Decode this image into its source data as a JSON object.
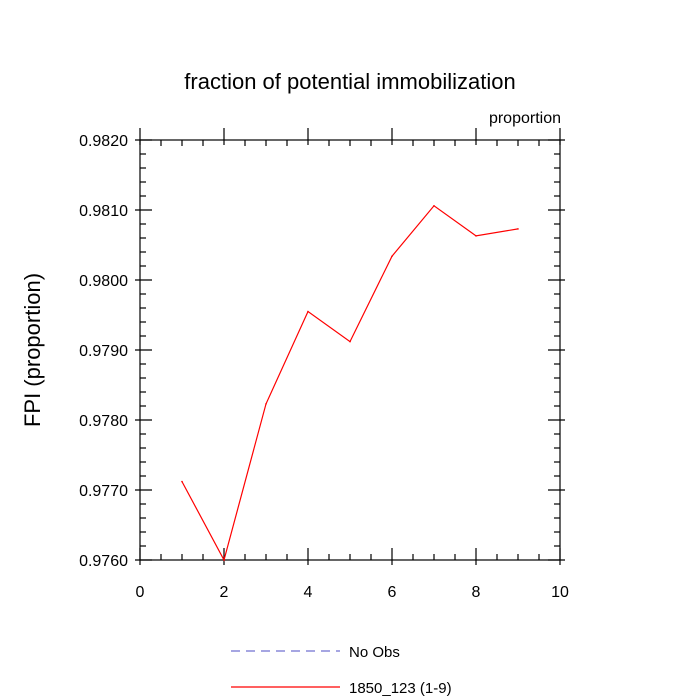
{
  "chart_data": {
    "type": "line",
    "title": "fraction of potential immobilization",
    "corner_label": "proportion",
    "xlabel": "",
    "ylabel": "FPI  (proportion)",
    "xlim": [
      0,
      10
    ],
    "ylim": [
      0.976,
      0.982
    ],
    "x_ticks": [
      0,
      2,
      4,
      6,
      8,
      10
    ],
    "x_tick_labels": [
      "0",
      "2",
      "4",
      "6",
      "8",
      "10"
    ],
    "y_ticks": [
      0.976,
      0.977,
      0.978,
      0.979,
      0.98,
      0.981,
      0.982
    ],
    "y_tick_labels": [
      "0.9760",
      "0.9770",
      "0.9780",
      "0.9790",
      "0.9800",
      "0.9810",
      "0.9820"
    ],
    "grid": false,
    "legend_position": "bottom",
    "series": [
      {
        "name": "1850_123 (1-9)",
        "color": "#ff0000",
        "style": "solid",
        "x": [
          1,
          2,
          3,
          4,
          5,
          6,
          7,
          8,
          9
        ],
        "y": [
          0.97712,
          0.976,
          0.97823,
          0.97955,
          0.97912,
          0.98034,
          0.98106,
          0.98063,
          0.98073
        ]
      }
    ],
    "legend": [
      {
        "label": "No Obs",
        "color": "#7070d0",
        "style": "dashed"
      },
      {
        "label": "1850_123 (1-9)",
        "color": "#ff0000",
        "style": "solid"
      }
    ]
  }
}
